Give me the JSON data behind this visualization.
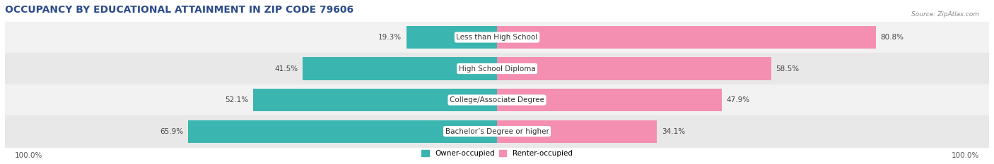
{
  "title": "OCCUPANCY BY EDUCATIONAL ATTAINMENT IN ZIP CODE 79606",
  "source": "Source: ZipAtlas.com",
  "categories": [
    "Less than High School",
    "High School Diploma",
    "College/Associate Degree",
    "Bachelor’s Degree or higher"
  ],
  "owner_values": [
    19.3,
    41.5,
    52.1,
    65.9
  ],
  "renter_values": [
    80.8,
    58.5,
    47.9,
    34.1
  ],
  "owner_color": "#3ab5b0",
  "renter_color": "#f48fb1",
  "row_colors": [
    "#f2f2f2",
    "#e8e8e8"
  ],
  "title_fontsize": 10,
  "label_fontsize": 7.5,
  "tick_fontsize": 7.5,
  "legend_fontsize": 7.5,
  "title_color": "#2b4c8c"
}
